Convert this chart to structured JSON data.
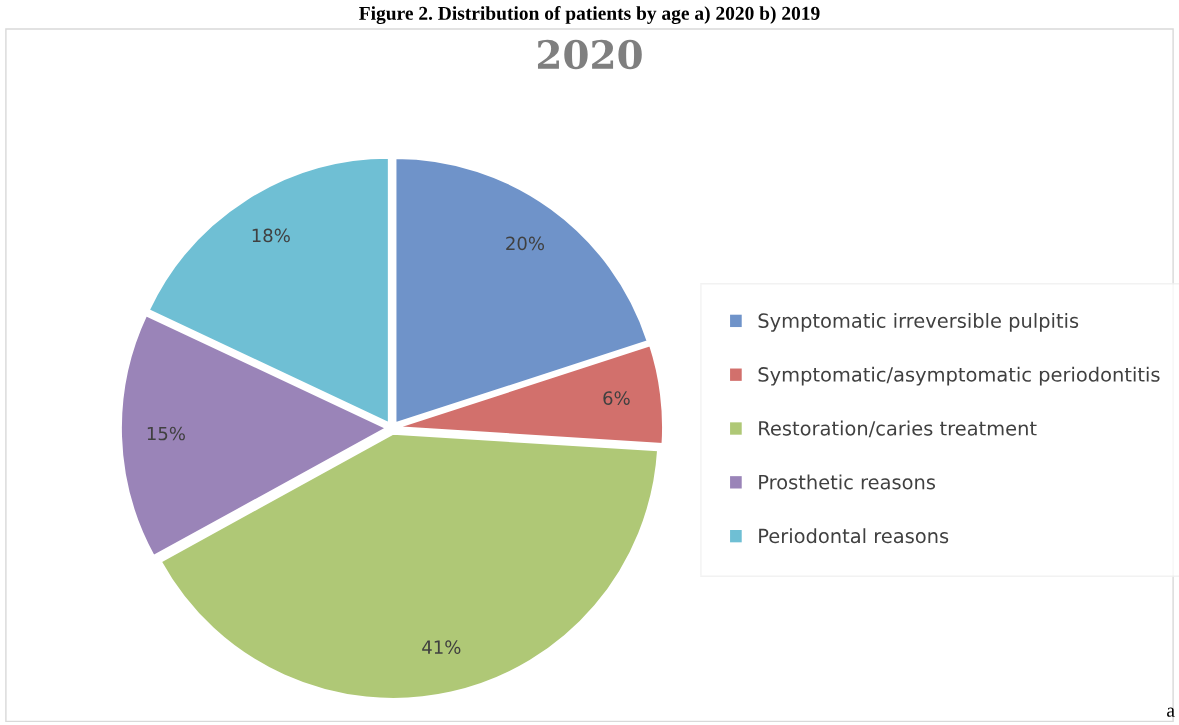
{
  "chart_data": {
    "type": "pie",
    "title": "2020",
    "categories": [
      "Symptomatic irreversible pulpitis",
      "Symptomatic/asymptomatic periodontitis",
      "Restoration/caries treatment",
      "Prosthetic reasons",
      "Periodontal reasons"
    ],
    "values": [
      20,
      6,
      41,
      15,
      18
    ],
    "colors": [
      "#6f93c9",
      "#d2706c",
      "#afc876",
      "#9a84b8",
      "#6fbfd4"
    ],
    "value_labels": [
      "20%",
      "6%",
      "41%",
      "15%",
      "18%"
    ],
    "legend": "right",
    "annotations": [
      "Figure 2. Distribution of patients by age a) 2020 b) 2019",
      "a"
    ]
  }
}
